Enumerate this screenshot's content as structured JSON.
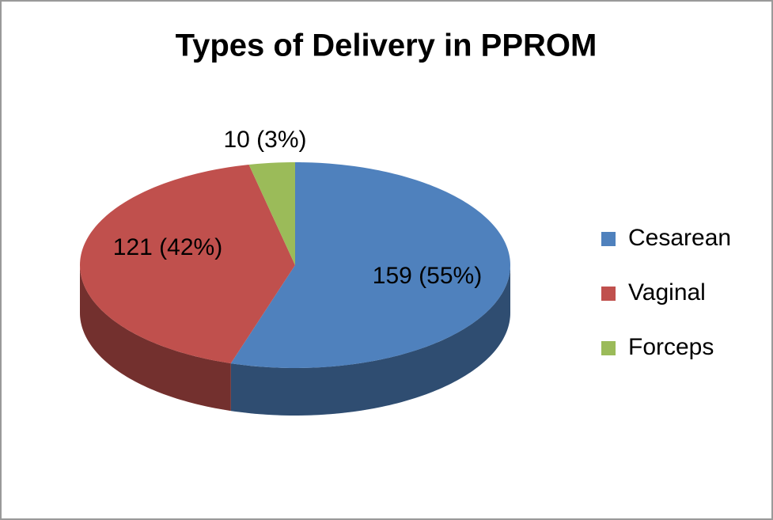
{
  "chart_data": {
    "type": "pie",
    "title": "Types of Delivery in PPROM",
    "categories": [
      "Cesarean",
      "Vaginal",
      "Forceps"
    ],
    "values": [
      159,
      121,
      10
    ],
    "value_labels": [
      "159 (55%)",
      "121 (42%)",
      "10 (3%)"
    ],
    "colors": [
      "#4f81bd",
      "#c0504d",
      "#9bbb59"
    ],
    "legend": "right"
  }
}
